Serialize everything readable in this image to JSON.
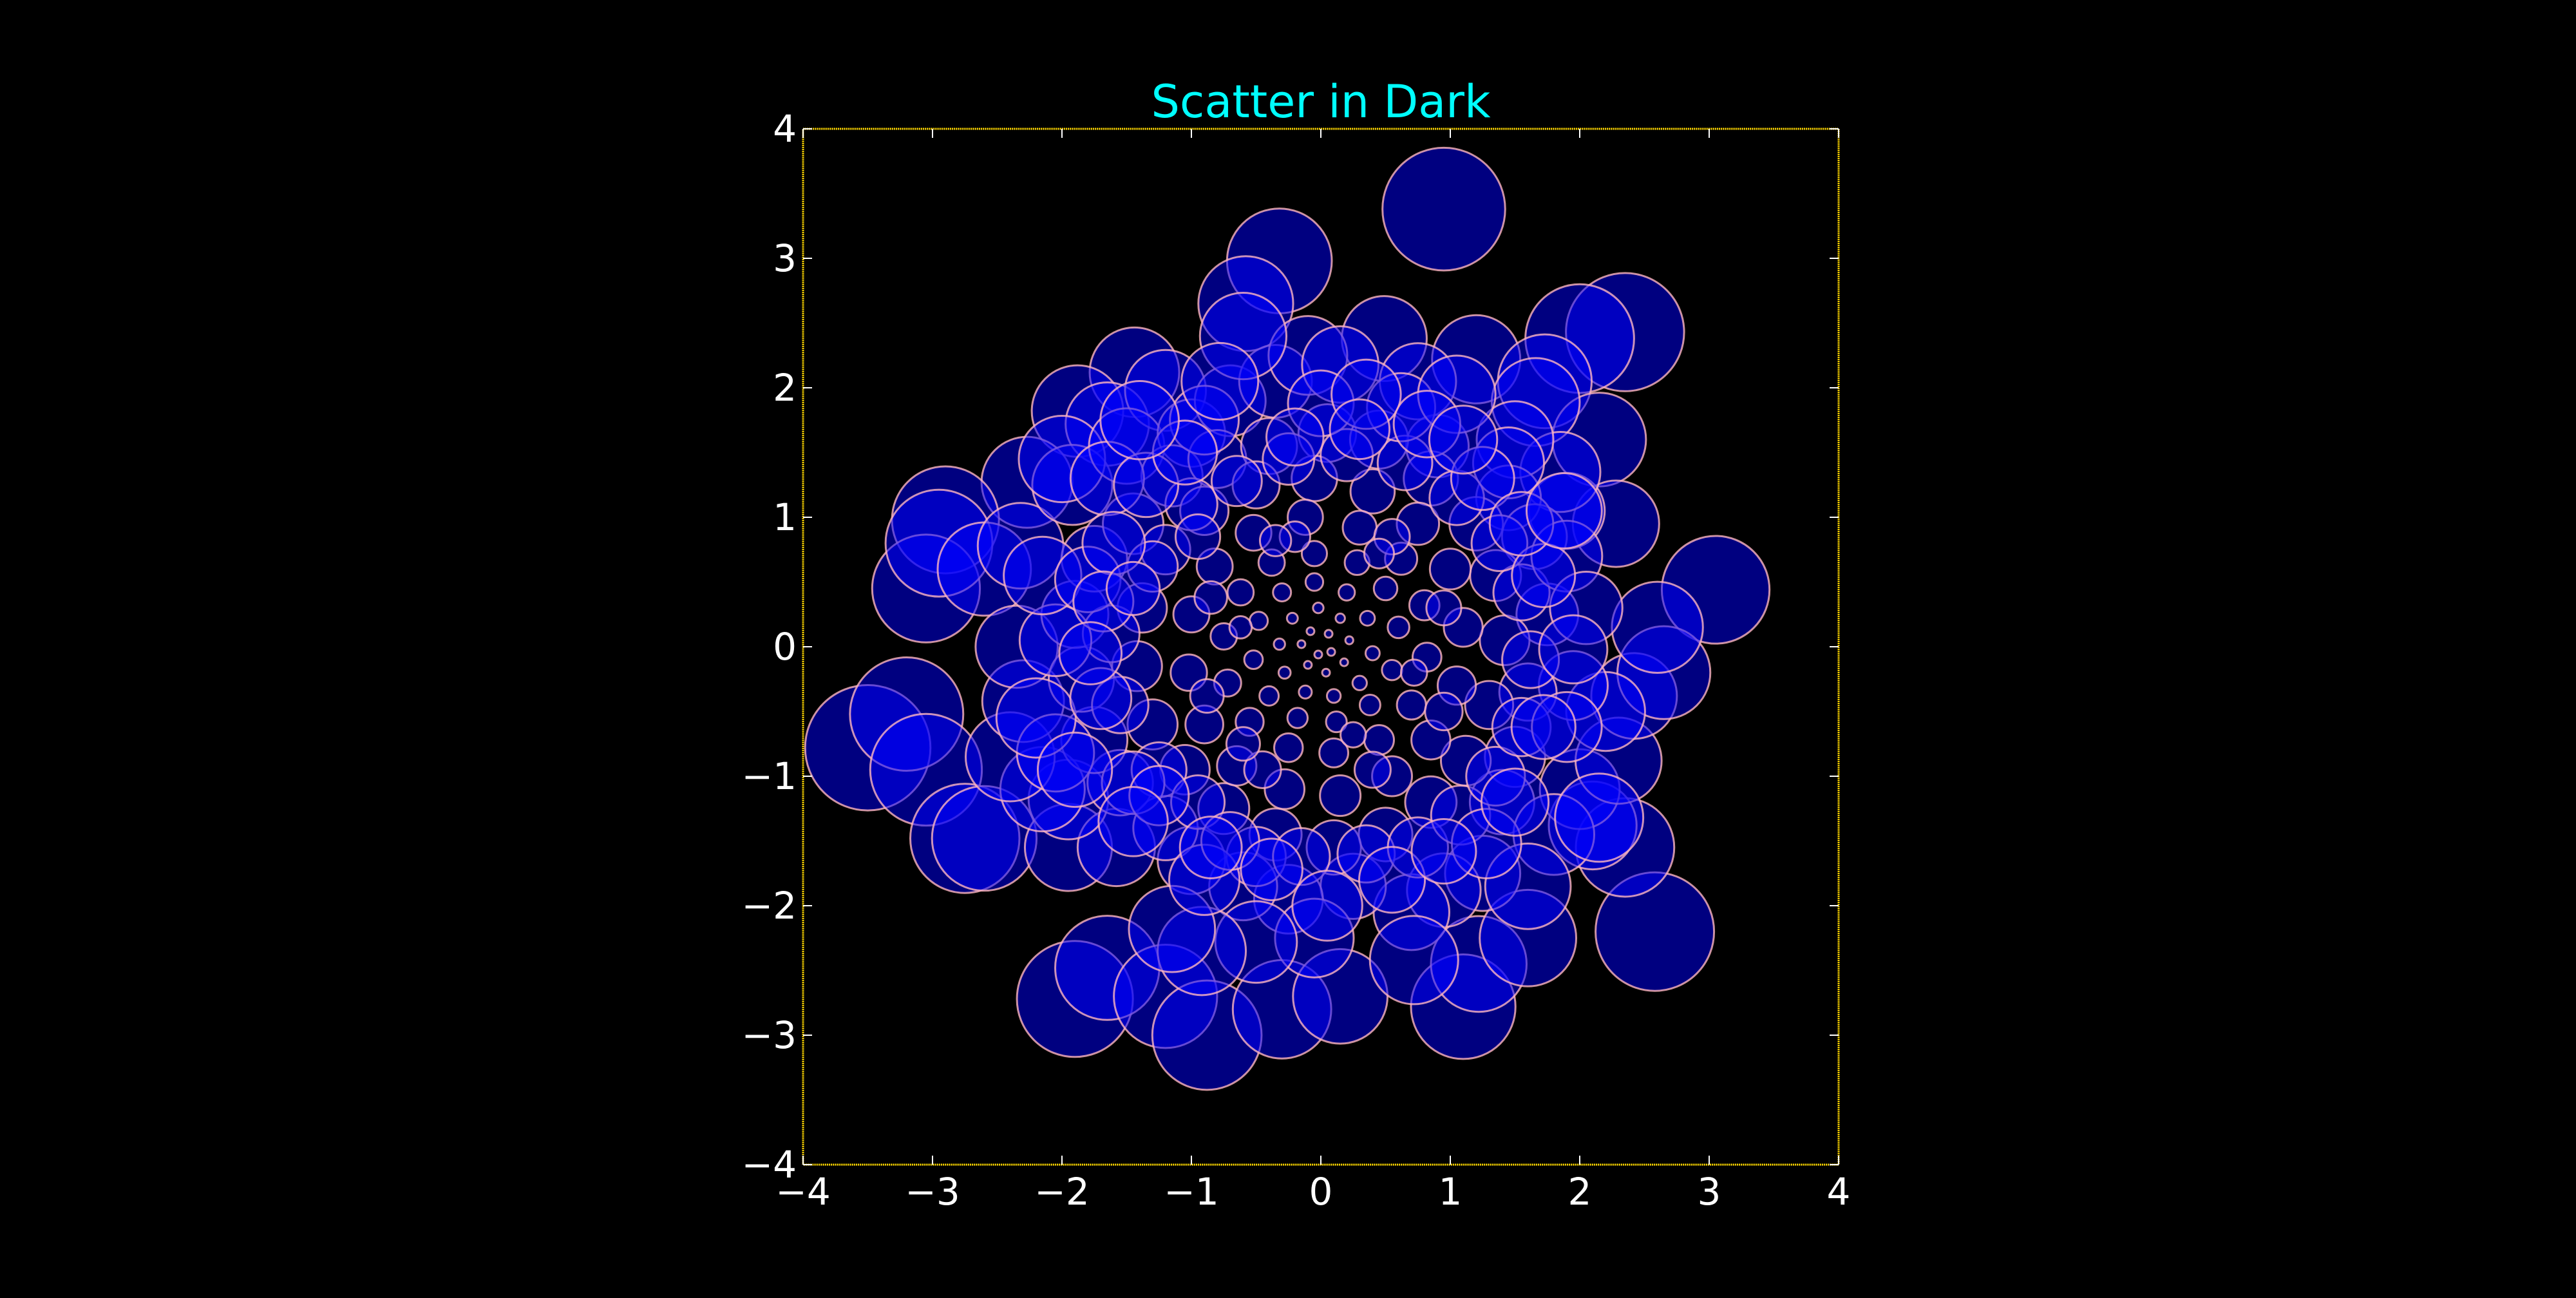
{
  "chart_data": {
    "type": "scatter",
    "title": "Scatter in Dark",
    "xlabel": "",
    "ylabel": "",
    "xlim": [
      -4,
      4
    ],
    "ylim": [
      -4,
      4
    ],
    "xticks": [
      "−4",
      "−3",
      "−2",
      "−1",
      "0",
      "1",
      "2",
      "3",
      "4"
    ],
    "yticks": [
      "4",
      "3",
      "2",
      "1",
      "0",
      "−1",
      "−2",
      "−3",
      "−4"
    ],
    "grid": false,
    "legend": "none",
    "colors": {
      "background": "#000000",
      "title": "#00ffff",
      "tick_labels": "#ffffff",
      "axes_frame": "#ffd700",
      "marker_fill": "#0000ff",
      "marker_edge": "#ffb6c1"
    },
    "note_size": "marker size grows with distance from origin",
    "points": [
      {
        "x": 0.95,
        "y": 3.38
      },
      {
        "x": -0.32,
        "y": 2.98
      },
      {
        "x": 2.35,
        "y": 2.43
      },
      {
        "x": 2.0,
        "y": 2.38
      },
      {
        "x": -0.58,
        "y": 2.65
      },
      {
        "x": 0.49,
        "y": 2.38
      },
      {
        "x": -1.44,
        "y": 2.12
      },
      {
        "x": 1.2,
        "y": 2.22
      },
      {
        "x": 1.73,
        "y": 2.05
      },
      {
        "x": -1.88,
        "y": 1.82
      },
      {
        "x": -1.65,
        "y": 1.72
      },
      {
        "x": 2.15,
        "y": 1.6
      },
      {
        "x": 1.66,
        "y": 1.89
      },
      {
        "x": -2.27,
        "y": 1.27
      },
      {
        "x": -1.2,
        "y": 1.98
      },
      {
        "x": 3.05,
        "y": 0.44
      },
      {
        "x": -3.5,
        "y": -0.78
      },
      {
        "x": -3.2,
        "y": -0.52
      },
      {
        "x": -3.05,
        "y": -0.95
      },
      {
        "x": -2.9,
        "y": 0.98
      },
      {
        "x": -3.05,
        "y": 0.45
      },
      {
        "x": -2.95,
        "y": 0.8
      },
      {
        "x": -2.6,
        "y": 0.6
      },
      {
        "x": -2.75,
        "y": -1.48
      },
      {
        "x": -2.6,
        "y": -1.48
      },
      {
        "x": -1.9,
        "y": -2.72
      },
      {
        "x": -1.65,
        "y": -2.48
      },
      {
        "x": -1.2,
        "y": -2.7
      },
      {
        "x": -0.88,
        "y": -3.0
      },
      {
        "x": -0.3,
        "y": -2.8
      },
      {
        "x": 0.15,
        "y": -2.7
      },
      {
        "x": 1.1,
        "y": -2.78
      },
      {
        "x": 1.22,
        "y": -2.45
      },
      {
        "x": 1.6,
        "y": -2.25
      },
      {
        "x": 2.58,
        "y": -2.2
      },
      {
        "x": 2.35,
        "y": -1.55
      },
      {
        "x": 2.1,
        "y": -1.38
      },
      {
        "x": 2.0,
        "y": -1.1
      },
      {
        "x": 2.3,
        "y": -0.88
      },
      {
        "x": 2.42,
        "y": -0.38
      },
      {
        "x": 2.65,
        "y": -0.2
      },
      {
        "x": 2.6,
        "y": 0.15
      },
      {
        "x": 2.2,
        "y": -0.5
      },
      {
        "x": 1.95,
        "y": -0.3
      },
      {
        "x": 2.28,
        "y": 0.95
      },
      {
        "x": 1.9,
        "y": 1.05
      },
      {
        "x": 1.85,
        "y": 1.35
      },
      {
        "x": 1.5,
        "y": 1.6
      },
      {
        "x": -1.95,
        "y": -1.55
      },
      {
        "x": -1.58,
        "y": -1.55
      },
      {
        "x": -1.95,
        "y": -1.18
      },
      {
        "x": -2.15,
        "y": -1.1
      },
      {
        "x": -2.4,
        "y": -0.85
      },
      {
        "x": -2.3,
        "y": -0.42
      },
      {
        "x": -2.35,
        "y": 0.0
      },
      {
        "x": -2.32,
        "y": 0.78
      },
      {
        "x": -1.92,
        "y": 1.25
      },
      {
        "x": -2.0,
        "y": 1.45
      },
      {
        "x": -1.5,
        "y": 1.55
      },
      {
        "x": -1.0,
        "y": 1.65
      },
      {
        "x": -0.7,
        "y": 1.9
      },
      {
        "x": -0.35,
        "y": 2.05
      },
      {
        "x": -0.1,
        "y": 2.25
      },
      {
        "x": 0.15,
        "y": 2.18
      },
      {
        "x": 0.75,
        "y": 2.05
      },
      {
        "x": 0.9,
        "y": 1.55
      },
      {
        "x": 1.45,
        "y": 1.15
      },
      {
        "x": 1.65,
        "y": 0.85
      },
      {
        "x": 1.75,
        "y": 0.25
      },
      {
        "x": 1.6,
        "y": -0.35
      },
      {
        "x": 1.5,
        "y": -0.85
      },
      {
        "x": 1.4,
        "y": -1.2
      },
      {
        "x": 1.25,
        "y": -1.75
      },
      {
        "x": 0.95,
        "y": -1.88
      },
      {
        "x": 0.7,
        "y": -2.05
      },
      {
        "x": 0.25,
        "y": -1.85
      },
      {
        "x": -0.25,
        "y": -1.95
      },
      {
        "x": -0.6,
        "y": -1.85
      },
      {
        "x": -1.0,
        "y": -1.65
      },
      {
        "x": -1.2,
        "y": -1.4
      },
      {
        "x": -1.55,
        "y": -1.05
      },
      {
        "x": -1.75,
        "y": -0.72
      },
      {
        "x": -1.85,
        "y": -0.25
      },
      {
        "x": -1.9,
        "y": 0.25
      },
      {
        "x": -1.75,
        "y": 0.68
      },
      {
        "x": -1.45,
        "y": 0.95
      },
      {
        "x": -1.15,
        "y": 1.32
      },
      {
        "x": -0.8,
        "y": 1.45
      },
      {
        "x": -0.4,
        "y": 1.55
      },
      {
        "x": 0.05,
        "y": 1.65
      },
      {
        "x": 0.45,
        "y": 1.6
      },
      {
        "x": 0.85,
        "y": 1.3
      },
      {
        "x": 1.2,
        "y": 0.95
      },
      {
        "x": 1.35,
        "y": 0.55
      },
      {
        "x": 1.42,
        "y": 0.05
      },
      {
        "x": 1.3,
        "y": -0.45
      },
      {
        "x": 1.12,
        "y": -0.88
      },
      {
        "x": 0.85,
        "y": -1.2
      },
      {
        "x": 0.5,
        "y": -1.45
      },
      {
        "x": 0.1,
        "y": -1.55
      },
      {
        "x": -0.35,
        "y": -1.45
      },
      {
        "x": -0.75,
        "y": -1.25
      },
      {
        "x": -1.05,
        "y": -0.95
      },
      {
        "x": -1.3,
        "y": -0.6
      },
      {
        "x": -1.42,
        "y": -0.15
      },
      {
        "x": -1.38,
        "y": 0.3
      },
      {
        "x": -1.2,
        "y": 0.75
      },
      {
        "x": -0.9,
        "y": 1.05
      },
      {
        "x": -0.5,
        "y": 1.25
      },
      {
        "x": -0.05,
        "y": 1.3
      },
      {
        "x": 0.4,
        "y": 1.2
      },
      {
        "x": 0.75,
        "y": 0.95
      },
      {
        "x": 1.0,
        "y": 0.6
      },
      {
        "x": 1.1,
        "y": 0.15
      },
      {
        "x": 1.05,
        "y": -0.3
      },
      {
        "x": 0.85,
        "y": -0.72
      },
      {
        "x": 0.55,
        "y": -1.0
      },
      {
        "x": 0.15,
        "y": -1.15
      },
      {
        "x": -0.28,
        "y": -1.1
      },
      {
        "x": -0.65,
        "y": -0.92
      },
      {
        "x": -0.9,
        "y": -0.6
      },
      {
        "x": -1.02,
        "y": -0.2
      },
      {
        "x": -1.0,
        "y": 0.25
      },
      {
        "x": -0.82,
        "y": 0.62
      },
      {
        "x": -0.52,
        "y": 0.88
      },
      {
        "x": -0.12,
        "y": 1.0
      },
      {
        "x": 0.3,
        "y": 0.92
      },
      {
        "x": 0.62,
        "y": 0.68
      },
      {
        "x": 0.8,
        "y": 0.32
      },
      {
        "x": 0.82,
        "y": -0.08
      },
      {
        "x": 0.7,
        "y": -0.45
      },
      {
        "x": 0.45,
        "y": -0.72
      },
      {
        "x": 0.1,
        "y": -0.82
      },
      {
        "x": -0.25,
        "y": -0.78
      },
      {
        "x": -0.55,
        "y": -0.58
      },
      {
        "x": -0.72,
        "y": -0.28
      },
      {
        "x": -0.75,
        "y": 0.08
      },
      {
        "x": -0.62,
        "y": 0.42
      },
      {
        "x": -0.38,
        "y": 0.65
      },
      {
        "x": -0.05,
        "y": 0.72
      },
      {
        "x": 0.28,
        "y": 0.65
      },
      {
        "x": 0.5,
        "y": 0.45
      },
      {
        "x": 0.6,
        "y": 0.15
      },
      {
        "x": 0.55,
        "y": -0.18
      },
      {
        "x": 0.38,
        "y": -0.45
      },
      {
        "x": 0.12,
        "y": -0.58
      },
      {
        "x": -0.18,
        "y": -0.55
      },
      {
        "x": -0.4,
        "y": -0.38
      },
      {
        "x": -0.52,
        "y": -0.1
      },
      {
        "x": -0.48,
        "y": 0.2
      },
      {
        "x": -0.3,
        "y": 0.42
      },
      {
        "x": -0.05,
        "y": 0.5
      },
      {
        "x": 0.2,
        "y": 0.42
      },
      {
        "x": 0.36,
        "y": 0.22
      },
      {
        "x": 0.4,
        "y": -0.05
      },
      {
        "x": 0.3,
        "y": -0.28
      },
      {
        "x": 0.1,
        "y": -0.38
      },
      {
        "x": -0.12,
        "y": -0.35
      },
      {
        "x": -0.28,
        "y": -0.2
      },
      {
        "x": -0.32,
        "y": 0.02
      },
      {
        "x": -0.22,
        "y": 0.22
      },
      {
        "x": -0.02,
        "y": 0.3
      },
      {
        "x": 0.15,
        "y": 0.22
      },
      {
        "x": 0.22,
        "y": 0.05
      },
      {
        "x": 0.18,
        "y": -0.12
      },
      {
        "x": 0.04,
        "y": -0.2
      },
      {
        "x": -0.1,
        "y": -0.14
      },
      {
        "x": -0.15,
        "y": 0.02
      },
      {
        "x": -0.08,
        "y": 0.12
      },
      {
        "x": 0.06,
        "y": 0.1
      },
      {
        "x": 0.08,
        "y": -0.04
      },
      {
        "x": -0.02,
        "y": -0.06
      },
      {
        "x": -1.62,
        "y": 0.1
      },
      {
        "x": -1.55,
        "y": -0.45
      },
      {
        "x": -1.25,
        "y": -0.95
      },
      {
        "x": -0.95,
        "y": -1.2
      },
      {
        "x": -0.5,
        "y": -1.62
      },
      {
        "x": 0.35,
        "y": -1.6
      },
      {
        "x": 0.75,
        "y": -1.55
      },
      {
        "x": 1.08,
        "y": -1.3
      },
      {
        "x": 1.35,
        "y": -1.0
      },
      {
        "x": 1.55,
        "y": -0.62
      },
      {
        "x": 1.62,
        "y": -0.1
      },
      {
        "x": 1.55,
        "y": 0.42
      },
      {
        "x": 1.38,
        "y": 0.8
      },
      {
        "x": 1.05,
        "y": 1.15
      },
      {
        "x": 0.65,
        "y": 1.42
      },
      {
        "x": 0.2,
        "y": 1.48
      },
      {
        "x": -0.25,
        "y": 1.45
      },
      {
        "x": -0.65,
        "y": 1.28
      },
      {
        "x": -1.0,
        "y": 1.1
      },
      {
        "x": -1.3,
        "y": 0.62
      },
      {
        "x": -1.65,
        "y": 1.3
      },
      {
        "x": -0.9,
        "y": 1.75
      },
      {
        "x": -0.6,
        "y": 2.4
      },
      {
        "x": 0.0,
        "y": 1.88
      },
      {
        "x": 0.62,
        "y": 1.85
      },
      {
        "x": 1.05,
        "y": 1.95
      },
      {
        "x": 1.45,
        "y": 1.42
      },
      {
        "x": 1.9,
        "y": 0.7
      },
      {
        "x": 2.05,
        "y": 0.3
      },
      {
        "x": 1.9,
        "y": -0.62
      },
      {
        "x": 1.8,
        "y": -1.45
      },
      {
        "x": 2.15,
        "y": -1.32
      },
      {
        "x": 1.6,
        "y": -1.85
      },
      {
        "x": 0.72,
        "y": -2.42
      },
      {
        "x": -0.05,
        "y": -2.25
      },
      {
        "x": -0.5,
        "y": -2.28
      },
      {
        "x": -0.92,
        "y": -2.35
      },
      {
        "x": -1.15,
        "y": -2.18
      },
      {
        "x": -0.9,
        "y": -1.8
      },
      {
        "x": -1.45,
        "y": -1.05
      },
      {
        "x": -2.05,
        "y": -0.82
      },
      {
        "x": -2.2,
        "y": -0.55
      },
      {
        "x": -2.05,
        "y": 0.05
      },
      {
        "x": -2.15,
        "y": 0.55
      },
      {
        "x": -1.8,
        "y": 0.52
      },
      {
        "x": -1.6,
        "y": 0.8
      },
      {
        "x": -1.35,
        "y": 1.25
      },
      {
        "x": -1.05,
        "y": 1.5
      },
      {
        "x": 0.35,
        "y": 1.95
      },
      {
        "x": 0.82,
        "y": 1.72
      },
      {
        "x": 1.25,
        "y": 1.3
      },
      {
        "x": 1.72,
        "y": 0.55
      },
      {
        "x": 1.72,
        "y": -0.62
      },
      {
        "x": 1.28,
        "y": -1.52
      },
      {
        "x": 0.55,
        "y": -1.8
      },
      {
        "x": -0.15,
        "y": -1.62
      },
      {
        "x": -0.7,
        "y": -1.5
      },
      {
        "x": -1.25,
        "y": -1.15
      },
      {
        "x": -1.7,
        "y": -0.4
      },
      {
        "x": -1.68,
        "y": 0.35
      },
      {
        "x": -1.4,
        "y": 1.75
      },
      {
        "x": -0.78,
        "y": 2.05
      },
      {
        "x": -0.2,
        "y": 1.62
      },
      {
        "x": 0.3,
        "y": 1.68
      },
      {
        "x": 1.1,
        "y": 1.6
      },
      {
        "x": 1.55,
        "y": 0.95
      },
      {
        "x": 1.88,
        "y": 1.05
      },
      {
        "x": 1.95,
        "y": -0.02
      },
      {
        "x": 1.5,
        "y": -1.2
      },
      {
        "x": 0.95,
        "y": -1.58
      },
      {
        "x": 0.05,
        "y": -2.0
      },
      {
        "x": -0.38,
        "y": -1.72
      },
      {
        "x": -0.85,
        "y": -1.55
      },
      {
        "x": -1.45,
        "y": -1.35
      },
      {
        "x": -1.9,
        "y": -0.95
      },
      {
        "x": -1.78,
        "y": -0.05
      },
      {
        "x": -1.45,
        "y": 0.45
      },
      {
        "x": -0.95,
        "y": 0.85
      },
      {
        "x": -0.2,
        "y": 0.85
      },
      {
        "x": 0.55,
        "y": 0.85
      },
      {
        "x": 0.95,
        "y": 0.3
      },
      {
        "x": 0.95,
        "y": -0.5
      },
      {
        "x": 0.4,
        "y": -0.95
      },
      {
        "x": -0.45,
        "y": -0.95
      },
      {
        "x": -0.88,
        "y": -0.38
      },
      {
        "x": -0.85,
        "y": 0.38
      },
      {
        "x": -0.35,
        "y": 0.82
      },
      {
        "x": 0.45,
        "y": 0.72
      },
      {
        "x": 0.72,
        "y": -0.2
      },
      {
        "x": 0.25,
        "y": -0.68
      },
      {
        "x": -0.6,
        "y": -0.75
      },
      {
        "x": -0.62,
        "y": 0.15
      }
    ]
  }
}
